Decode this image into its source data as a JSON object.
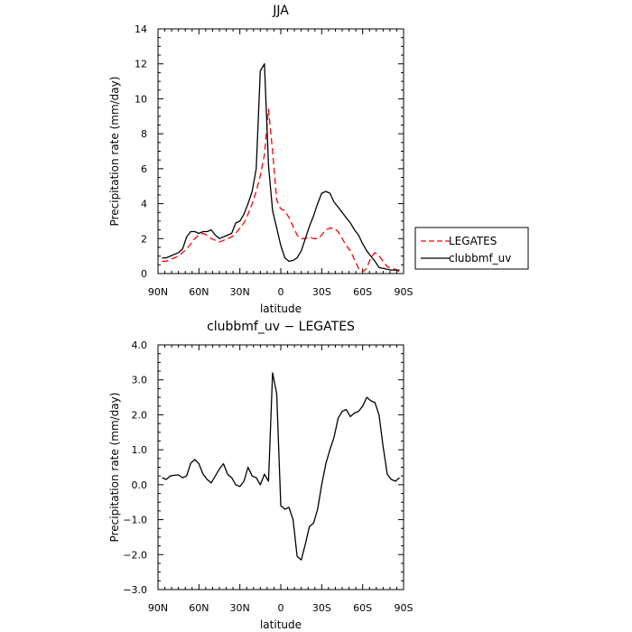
{
  "chart_data": [
    {
      "type": "line",
      "title": "JJA",
      "xlabel": "latitude",
      "ylabel": "Precipitation rate  (mm/day)",
      "xlim": [
        -90,
        90
      ],
      "ylim": [
        0,
        14
      ],
      "xticks": [
        -90,
        -60,
        -30,
        0,
        30,
        60,
        90
      ],
      "xtick_labels": [
        "90N",
        "60N",
        "30N",
        "0",
        "30S",
        "60S",
        "90S"
      ],
      "yticks": [
        0,
        2,
        4,
        6,
        8,
        10,
        12,
        14
      ],
      "ytick_labels": [
        "0",
        "2",
        "4",
        "6",
        "8",
        "10",
        "12",
        "14"
      ],
      "legend_position": "right",
      "grid": false,
      "series": [
        {
          "name": "LEGATES",
          "color": "#ff0000",
          "dash": "dashed",
          "x": [
            -87,
            -84,
            -81,
            -78,
            -75,
            -72,
            -69,
            -66,
            -63,
            -60,
            -57,
            -54,
            -51,
            -48,
            -45,
            -42,
            -39,
            -36,
            -33,
            -30,
            -27,
            -24,
            -21,
            -18,
            -15,
            -12,
            -9,
            -6,
            -3,
            0,
            3,
            6,
            9,
            12,
            15,
            18,
            21,
            24,
            27,
            30,
            33,
            36,
            39,
            42,
            45,
            48,
            51,
            54,
            57,
            60,
            63,
            66,
            69,
            72,
            75,
            78,
            81,
            84,
            87
          ],
          "values": [
            0.7,
            0.7,
            0.8,
            0.9,
            1.0,
            1.2,
            1.4,
            1.7,
            2.0,
            2.2,
            2.3,
            2.2,
            2.0,
            1.9,
            1.8,
            1.9,
            2.0,
            2.1,
            2.3,
            2.6,
            2.9,
            3.4,
            4.0,
            4.7,
            5.6,
            6.8,
            9.4,
            7.0,
            4.2,
            3.7,
            3.6,
            3.2,
            2.7,
            2.2,
            2.0,
            2.0,
            2.1,
            2.0,
            2.0,
            2.2,
            2.5,
            2.6,
            2.6,
            2.4,
            2.0,
            1.6,
            1.3,
            0.8,
            0.3,
            0.1,
            0.3,
            0.9,
            1.2,
            1.0,
            0.7,
            0.4,
            0.3,
            0.25,
            0.1
          ]
        },
        {
          "name": "clubbmf_uv",
          "color": "#000000",
          "dash": "solid",
          "x": [
            -87,
            -84,
            -81,
            -78,
            -75,
            -72,
            -69,
            -66,
            -63,
            -60,
            -57,
            -54,
            -51,
            -48,
            -45,
            -42,
            -39,
            -36,
            -33,
            -30,
            -27,
            -24,
            -21,
            -18,
            -15,
            -12,
            -9,
            -6,
            -3,
            0,
            3,
            6,
            9,
            12,
            15,
            18,
            21,
            24,
            27,
            30,
            33,
            36,
            39,
            42,
            45,
            48,
            51,
            54,
            57,
            60,
            63,
            66,
            69,
            72,
            75,
            78,
            81,
            84,
            87
          ],
          "values": [
            0.9,
            0.9,
            1.0,
            1.1,
            1.2,
            1.4,
            2.1,
            2.4,
            2.4,
            2.3,
            2.4,
            2.4,
            2.5,
            2.2,
            2.0,
            2.1,
            2.2,
            2.3,
            2.9,
            3.0,
            3.4,
            4.0,
            4.7,
            6.0,
            11.6,
            12.0,
            6.2,
            3.6,
            2.6,
            1.6,
            0.9,
            0.7,
            0.75,
            0.9,
            1.3,
            2.0,
            2.7,
            3.3,
            4.0,
            4.6,
            4.7,
            4.6,
            4.1,
            3.8,
            3.5,
            3.2,
            2.9,
            2.5,
            2.2,
            1.7,
            1.3,
            1.0,
            0.7,
            0.35,
            0.3,
            0.25,
            0.2,
            0.2,
            0.2
          ]
        }
      ]
    },
    {
      "type": "line",
      "title": "clubbmf_uv  −  LEGATES",
      "xlabel": "latitude",
      "ylabel": "Precipitation rate  (mm/day)",
      "xlim": [
        -90,
        90
      ],
      "ylim": [
        -3.0,
        4.0
      ],
      "xticks": [
        -90,
        -60,
        -30,
        0,
        30,
        60,
        90
      ],
      "xtick_labels": [
        "90N",
        "60N",
        "30N",
        "0",
        "30S",
        "60S",
        "90S"
      ],
      "yticks": [
        -3,
        -2,
        -1,
        0,
        1,
        2,
        3,
        4
      ],
      "ytick_labels": [
        "−3.0",
        "−2.0",
        "−1.0",
        "0.0",
        "1.0",
        "2.0",
        "3.0",
        "4.0"
      ],
      "grid": false,
      "series": [
        {
          "color": "#000000",
          "dash": "solid",
          "x": [
            -87,
            -84,
            -81,
            -78,
            -75,
            -72,
            -69,
            -66,
            -63,
            -60,
            -57,
            -54,
            -51,
            -48,
            -45,
            -42,
            -39,
            -36,
            -33,
            -30,
            -27,
            -24,
            -21,
            -18,
            -15,
            -12,
            -9,
            -6,
            -3,
            0,
            3,
            6,
            9,
            12,
            15,
            18,
            21,
            24,
            27,
            30,
            33,
            36,
            39,
            42,
            45,
            48,
            51,
            54,
            57,
            60,
            63,
            66,
            69,
            72,
            75,
            78,
            81,
            84,
            87
          ],
          "values": [
            0.2,
            0.15,
            0.25,
            0.27,
            0.28,
            0.2,
            0.25,
            0.62,
            0.72,
            0.6,
            0.3,
            0.15,
            0.05,
            0.25,
            0.45,
            0.6,
            0.3,
            0.2,
            0.0,
            -0.05,
            0.1,
            0.5,
            0.25,
            0.2,
            0.0,
            0.3,
            0.1,
            3.2,
            2.6,
            -0.6,
            -0.7,
            -0.65,
            -1.0,
            -2.05,
            -2.15,
            -1.7,
            -1.2,
            -1.1,
            -0.7,
            0.0,
            0.6,
            1.0,
            1.35,
            1.9,
            2.1,
            2.15,
            1.95,
            2.05,
            2.1,
            2.25,
            2.5,
            2.4,
            2.35,
            2.0,
            1.1,
            0.3,
            0.15,
            0.1,
            0.2
          ]
        }
      ]
    }
  ]
}
